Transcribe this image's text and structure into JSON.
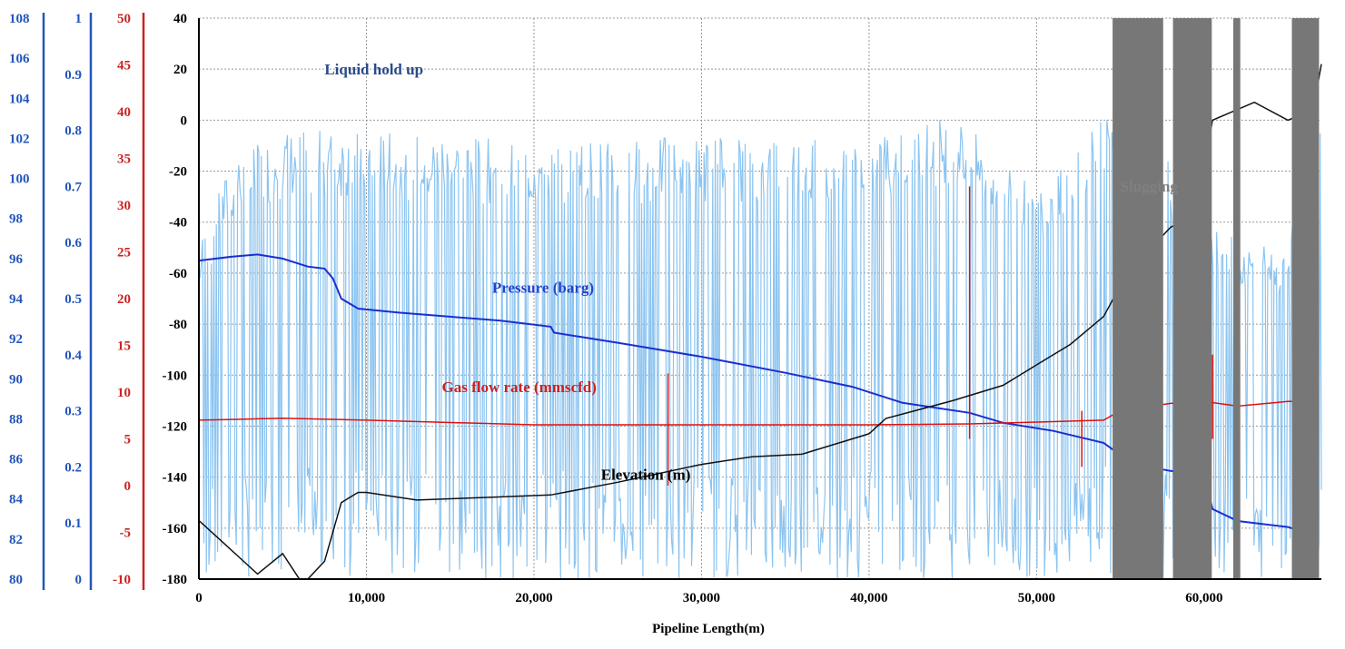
{
  "chart_data": {
    "type": "line",
    "title": "",
    "xlabel": "Pipeline Length(m)",
    "xlim": [
      0,
      67000
    ],
    "x_ticks": [
      0,
      10000,
      20000,
      30000,
      40000,
      50000,
      60000
    ],
    "x_tick_labels": [
      "0",
      "10,000",
      "20,000",
      "30,000",
      "40,000",
      "50,000",
      "60,000"
    ],
    "grid": true,
    "legend": "none",
    "axes": [
      {
        "id": "pressure",
        "color": "#2255bb",
        "ylim": [
          80,
          108
        ],
        "tick_labels": [
          "80",
          "82",
          "84",
          "86",
          "88",
          "90",
          "92",
          "94",
          "96",
          "98",
          "100",
          "102",
          "104",
          "106",
          "108"
        ]
      },
      {
        "id": "holdup",
        "color": "#2255bb",
        "ylim": [
          0,
          1
        ],
        "tick_labels": [
          "0",
          "0.1",
          "0.2",
          "0.3",
          "0.4",
          "0.5",
          "0.6",
          "0.7",
          "0.8",
          "0.9",
          "1"
        ]
      },
      {
        "id": "gas",
        "color": "#cc2222",
        "ylim": [
          -10,
          50
        ],
        "tick_labels": [
          "-10",
          "-5",
          "0",
          "5",
          "10",
          "15",
          "20",
          "25",
          "30",
          "35",
          "40",
          "45",
          "50"
        ]
      },
      {
        "id": "elevation",
        "color": "#000000",
        "ylim": [
          -180,
          40
        ],
        "tick_labels": [
          "-180",
          "-160",
          "-140",
          "-120",
          "-100",
          "-80",
          "-60",
          "-40",
          "-20",
          "0",
          "20",
          "40"
        ]
      }
    ],
    "series": [
      {
        "name": "Liquid hold up",
        "axis": "holdup",
        "color": "#8cc4f0",
        "label_color": "#2a4a8a",
        "label_at": [
          7500,
          0.9
        ],
        "style": "oscillating",
        "envelope_upper": [
          [
            0,
            0.6
          ],
          [
            2000,
            0.75
          ],
          [
            5000,
            0.8
          ],
          [
            10000,
            0.8
          ],
          [
            20000,
            0.78
          ],
          [
            30000,
            0.79
          ],
          [
            40000,
            0.79
          ],
          [
            45000,
            0.83
          ],
          [
            50000,
            0.7
          ],
          [
            54000,
            0.85
          ],
          [
            58000,
            0.75
          ],
          [
            62000,
            0.6
          ],
          [
            65000,
            0.6
          ],
          [
            67000,
            0.9
          ]
        ],
        "envelope_lower": [
          [
            0,
            0.0
          ],
          [
            67000,
            0.0
          ]
        ]
      },
      {
        "name": "Pressure (barg)",
        "axis": "pressure",
        "color": "#1a2fd0",
        "label_color": "#2244cc",
        "label_at": [
          17500,
          94.3
        ],
        "x": [
          0,
          2000,
          3500,
          5000,
          6500,
          7500,
          8000,
          8500,
          9500,
          12000,
          15000,
          18000,
          21000,
          21200,
          25000,
          30000,
          35000,
          39000,
          42000,
          46000,
          48000,
          51000,
          54000,
          55000,
          56000,
          58000,
          60000,
          60500,
          62000,
          65000,
          66500
        ],
        "y": [
          95.9,
          96.1,
          96.2,
          96.0,
          95.6,
          95.5,
          95.0,
          94.0,
          93.5,
          93.3,
          93.1,
          92.9,
          92.6,
          92.3,
          91.8,
          91.1,
          90.3,
          89.6,
          88.8,
          88.3,
          87.8,
          87.4,
          86.8,
          86.2,
          85.7,
          85.4,
          85.2,
          83.5,
          82.9,
          82.6,
          82.2
        ]
      },
      {
        "name": "Gas flow rate (mmscfd)",
        "axis": "gas",
        "color": "#dd1111",
        "label_color": "#cc2222",
        "label_at": [
          14500,
          10.0
        ],
        "x": [
          0,
          5000,
          10000,
          20000,
          27000,
          28000,
          30000,
          40000,
          46000,
          50000,
          54000,
          55000,
          58000,
          60000,
          62000,
          65000,
          66500
        ],
        "y": [
          7.0,
          7.2,
          7.0,
          6.5,
          6.5,
          6.5,
          6.5,
          6.5,
          6.6,
          6.8,
          7.0,
          8.0,
          8.8,
          9.0,
          8.5,
          9.0,
          9.0
        ]
      },
      {
        "name": "Elevation (m)",
        "axis": "elevation",
        "color": "#111111",
        "label_color": "#000000",
        "label_at": [
          24000,
          -141
        ],
        "x": [
          0,
          1000,
          2500,
          3500,
          5000,
          6000,
          6500,
          7500,
          8500,
          9500,
          10000,
          13000,
          17000,
          21000,
          25000,
          30000,
          33000,
          36000,
          38000,
          40000,
          41000,
          45000,
          48000,
          50000,
          52000,
          54000,
          55000,
          56000,
          57000,
          58000,
          59500,
          60500,
          63000,
          65000,
          66500,
          67000
        ],
        "y": [
          -157,
          -163,
          -172,
          -178,
          -170,
          -180,
          -180,
          -173,
          -150,
          -146,
          -146,
          -149,
          -148,
          -147,
          -142,
          -135,
          -132,
          -131,
          -127,
          -123,
          -117,
          -110,
          -104,
          -96,
          -88,
          -77,
          -65,
          -55,
          -49,
          -42,
          -37,
          0,
          7,
          0,
          4,
          22
        ]
      },
      {
        "name": "Slugging",
        "axis": "elevation",
        "color": "#777777",
        "label_color": "#808080",
        "label_at": [
          55000,
          -28
        ],
        "style": "spikes",
        "clusters": [
          [
            54600,
            57500
          ],
          [
            58200,
            60400
          ],
          [
            61800,
            62100
          ],
          [
            65300,
            66800
          ]
        ]
      }
    ]
  }
}
